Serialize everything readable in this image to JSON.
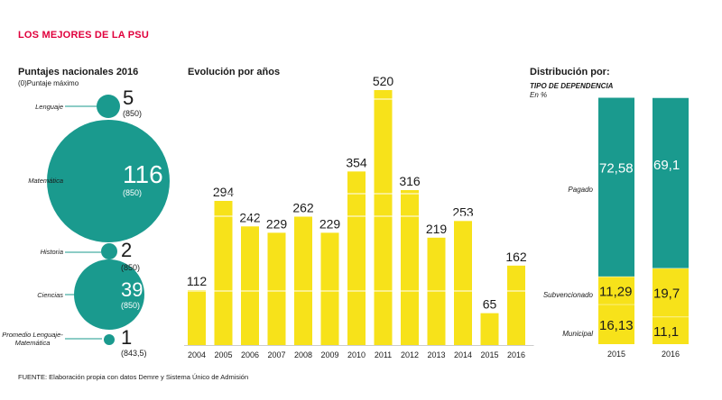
{
  "header": {
    "title": "LOS MEJORES DE LA PSU",
    "source": "FUENTE: Elaboración propia con datos Demre y Sistema Único de Admisión"
  },
  "colors": {
    "accent": "#e0003c",
    "teal": "#1a9a8e",
    "yellow": "#f7e21a",
    "yellow_light": "#f8ec7e"
  },
  "chart_data": [
    {
      "type": "bubble",
      "title": "Puntajes nacionales 2016",
      "subtitle": "(0)Puntaje máximo",
      "items": [
        {
          "label": "Lenguaje",
          "value": 5,
          "max_text": "(850)"
        },
        {
          "label": "Matemática",
          "value": 116,
          "max_text": "(850)"
        },
        {
          "label": "Historia",
          "value": 2,
          "max_text": "(850)"
        },
        {
          "label": "Ciencias",
          "value": 39,
          "max_text": "(850)"
        },
        {
          "label": "Promedio Lenguaje-Matemática",
          "value": 1,
          "max_text": "(843,5)"
        }
      ]
    },
    {
      "type": "bar",
      "title": "Evolución por años",
      "categories": [
        "2004",
        "2005",
        "2006",
        "2007",
        "2008",
        "2009",
        "2010",
        "2011",
        "2012",
        "2013",
        "2014",
        "2015",
        "2016"
      ],
      "values": [
        112,
        294,
        242,
        229,
        262,
        229,
        354,
        520,
        316,
        219,
        253,
        65,
        162
      ],
      "ylim": [
        0,
        520
      ]
    },
    {
      "type": "bar",
      "stacked": true,
      "title": "Distribución por:",
      "subtitle": "TIPO DE DEPENDENCIA",
      "unit": "En %",
      "categories": [
        "2015",
        "2016"
      ],
      "series": [
        {
          "name": "Municipal",
          "values": [
            16.13,
            11.1
          ],
          "labels": [
            "16,13",
            "11,1"
          ]
        },
        {
          "name": "Subvencionado",
          "values": [
            11.29,
            19.7
          ],
          "labels": [
            "11,29",
            "19,7"
          ]
        },
        {
          "name": "Pagado",
          "values": [
            72.58,
            69.1
          ],
          "labels": [
            "72,58",
            "69,1"
          ]
        }
      ]
    }
  ]
}
